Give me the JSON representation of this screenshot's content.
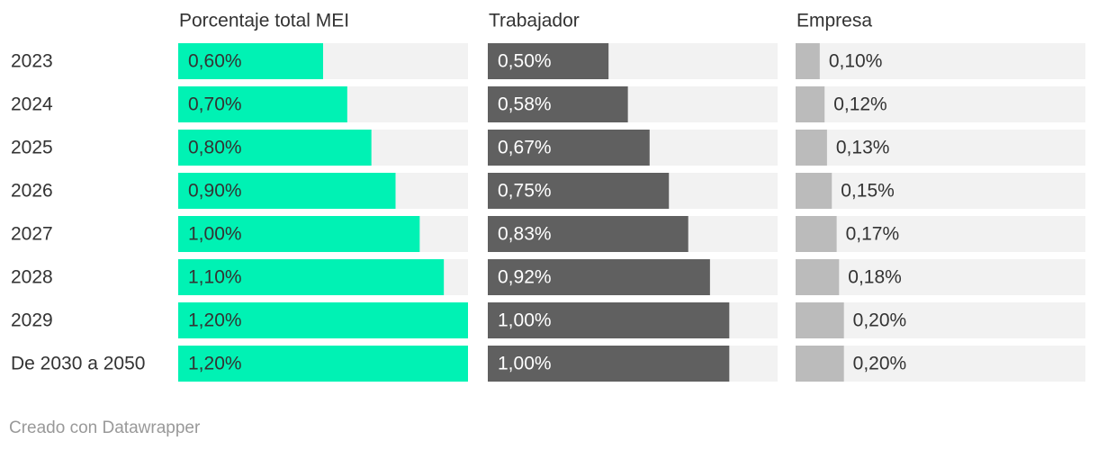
{
  "chart_data": {
    "type": "bar",
    "categories": [
      "2023",
      "2024",
      "2025",
      "2026",
      "2027",
      "2028",
      "2029",
      "De 2030 a 2050"
    ],
    "xlim": [
      0,
      1.2
    ],
    "series": [
      {
        "name": "Porcentaje total MEI",
        "color": "#00f2b4",
        "label_color": "#333333",
        "labels_inside": true,
        "values": [
          0.6,
          0.7,
          0.8,
          0.9,
          1.0,
          1.1,
          1.2,
          1.2
        ],
        "value_labels": [
          "0,60%",
          "0,70%",
          "0,80%",
          "0,90%",
          "1,00%",
          "1,10%",
          "1,20%",
          "1,20%"
        ]
      },
      {
        "name": "Trabajador",
        "color": "#606060",
        "label_color": "#ffffff",
        "labels_inside": true,
        "values": [
          0.5,
          0.58,
          0.67,
          0.75,
          0.83,
          0.92,
          1.0,
          1.0
        ],
        "value_labels": [
          "0,50%",
          "0,58%",
          "0,67%",
          "0,75%",
          "0,83%",
          "0,92%",
          "1,00%",
          "1,00%"
        ]
      },
      {
        "name": "Empresa",
        "color": "#bbbbbb",
        "label_color": "#333333",
        "labels_inside": false,
        "values": [
          0.1,
          0.12,
          0.13,
          0.15,
          0.17,
          0.18,
          0.2,
          0.2
        ],
        "value_labels": [
          "0,10%",
          "0,12%",
          "0,13%",
          "0,15%",
          "0,17%",
          "0,18%",
          "0,20%",
          "0,20%"
        ]
      }
    ],
    "credit": "Creado con Datawrapper"
  }
}
